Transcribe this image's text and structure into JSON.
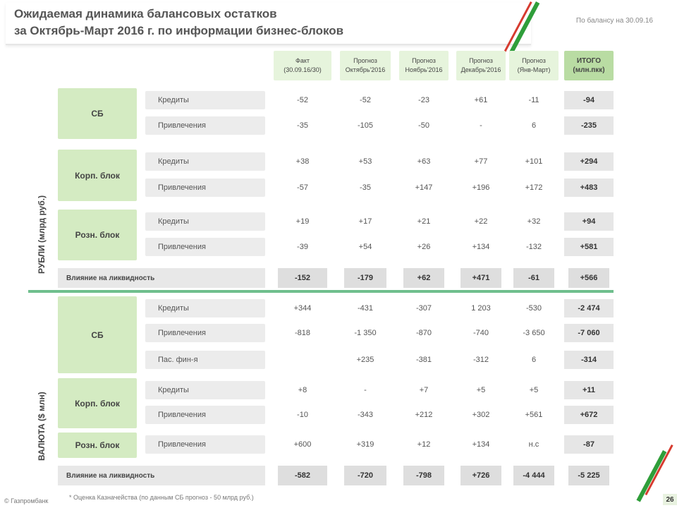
{
  "header": {
    "title_line1": "Ожидаемая динамика балансовых остатков",
    "title_line2": "за Октябрь-Март 2016 г. по информации бизнес-блоков",
    "date_note": "По балансу на 30.09.16"
  },
  "columns": [
    {
      "l1": "Факт",
      "l2": "(30.09.16/30)"
    },
    {
      "l1": "Прогноз",
      "l2": "Октябрь'2016"
    },
    {
      "l1": "Прогноз",
      "l2": "Ноябрь'2016"
    },
    {
      "l1": "Прогноз",
      "l2": "Декабрь'2016"
    },
    {
      "l1": "Прогноз",
      "l2": "(Янв-Март)"
    },
    {
      "l1": "ИТОГО",
      "l2": "(млн.пкк)"
    }
  ],
  "rub": {
    "section_label": "РУБЛИ (млрд руб.)",
    "groups": [
      {
        "name": "СБ",
        "rows": [
          {
            "label": "Кредиты",
            "vals": [
              "-52",
              "-52",
              "-23",
              "+61",
              "-11",
              "-94"
            ]
          },
          {
            "label": "Привлечения",
            "vals": [
              "-35",
              "-105",
              "-50",
              "-",
              "6",
              "-235"
            ]
          }
        ]
      },
      {
        "name": "Корп. блок",
        "rows": [
          {
            "label": "Кредиты",
            "vals": [
              "+38",
              "+53",
              "+63",
              "+77",
              "+101",
              "+294"
            ]
          },
          {
            "label": "Привлечения",
            "vals": [
              "-57",
              "-35",
              "+147",
              "+196",
              "+172",
              "+483"
            ]
          }
        ]
      },
      {
        "name": "Розн. блок",
        "rows": [
          {
            "label": "Кредиты",
            "vals": [
              "+19",
              "+17",
              "+21",
              "+22",
              "+32",
              "+94"
            ]
          },
          {
            "label": "Привлечения",
            "vals": [
              "-39",
              "+54",
              "+26",
              "+134",
              "-132",
              "+581"
            ]
          }
        ]
      }
    ],
    "summary": {
      "label": "Влияние на ликвидность",
      "vals": [
        "-152",
        "-179",
        "+62",
        "+471",
        "-61",
        "+566"
      ]
    }
  },
  "fx": {
    "section_label": "ВАЛЮТА ($ млн)",
    "groups": [
      {
        "name": "СБ",
        "rows": [
          {
            "label": "Кредиты",
            "vals": [
              "+344",
              "-431",
              "-307",
              "1 203",
              "-530",
              "-2 474"
            ]
          },
          {
            "label": "Привлечения",
            "vals": [
              "-818",
              "-1 350",
              "-870",
              "-740",
              "-3 650",
              "-7 060"
            ]
          },
          {
            "label": "Пас. фин-я",
            "vals": [
              "",
              "+235",
              "-381",
              "-312",
              "6",
              "-314"
            ]
          }
        ]
      },
      {
        "name": "Корп. блок",
        "rows": [
          {
            "label": "Кредиты",
            "vals": [
              "+8",
              "-",
              "+7",
              "+5",
              "+5",
              "+11"
            ]
          },
          {
            "label": "Привлечения",
            "vals": [
              "-10",
              "-343",
              "+212",
              "+302",
              "+561",
              "+672"
            ]
          }
        ]
      },
      {
        "name": "Розн. блок",
        "rows": [
          {
            "label": "Привлечения",
            "vals": [
              "+600",
              "+319",
              "+12",
              "+134",
              "н.с",
              "-87"
            ]
          }
        ]
      }
    ],
    "summary": {
      "label": "Влияние на ликвидность",
      "vals": [
        "-582",
        "-720",
        "-798",
        "+726",
        "-4 444",
        "-5 225"
      ]
    }
  },
  "footer": {
    "left": "© Газпромбанк",
    "note": "* Оценка Казначейства (по данным СБ прогноз - 50 млрд руб.)",
    "page": "26"
  },
  "colors": {
    "green_cell": "#d4ebc2",
    "divider": "#6fbf8d",
    "accent_green": "#2f9e3a",
    "accent_red": "#d63b2f"
  }
}
